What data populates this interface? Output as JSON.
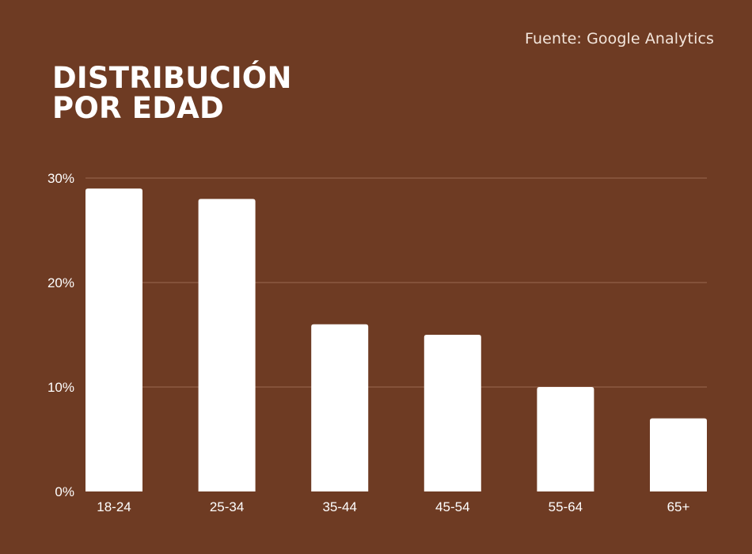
{
  "source": "Fuente: Google Analytics",
  "title_lines": [
    "DISTRIBUCIÓN",
    "POR EDAD"
  ],
  "colors": {
    "background": "#6e3b23",
    "bar": "#ffffff",
    "grid": "#9a6a52"
  },
  "chart_data": {
    "type": "bar",
    "title": "DISTRIBUCIÓN POR EDAD",
    "categories": [
      "18-24",
      "25-34",
      "35-44",
      "45-54",
      "55-64",
      "65+"
    ],
    "values": [
      29,
      28,
      16,
      15,
      10,
      7
    ],
    "ylim": [
      0,
      30
    ],
    "yticks": [
      0,
      10,
      20,
      30
    ],
    "ytick_labels": [
      "0%",
      "10%",
      "20%",
      "30%"
    ],
    "xlabel": "",
    "ylabel": "",
    "grid": true,
    "legend": "none"
  }
}
